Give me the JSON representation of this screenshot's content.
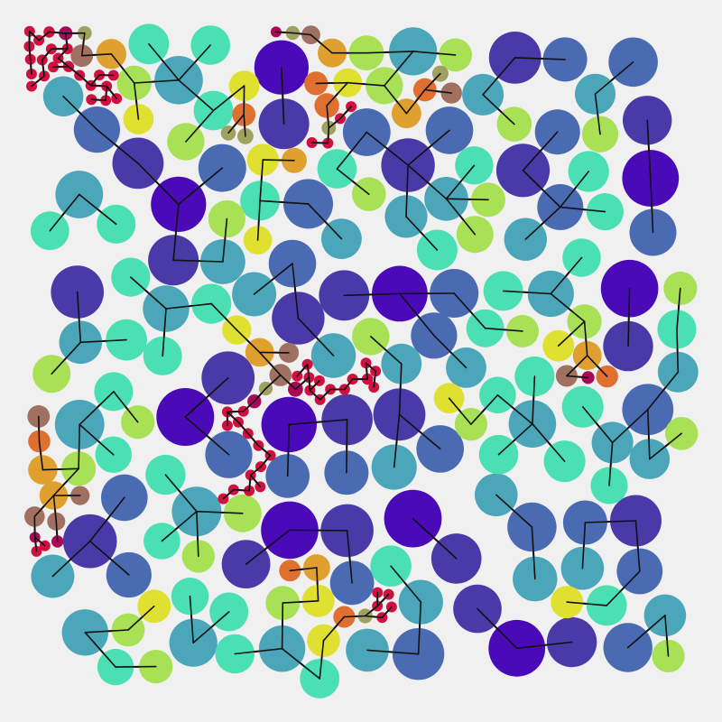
{
  "palette": {
    "background": "#f0f0f0",
    "line": "#111111",
    "levels": [
      "#4a0ab8",
      "#4a3aa8",
      "#4a6ab2",
      "#4aa6b8",
      "#4ae0b4",
      "#a8e056",
      "#e0e030",
      "#e0a030",
      "#e07030",
      "#a07060",
      "#a0a060",
      "#a80a58",
      "#d01040"
    ]
  }
}
